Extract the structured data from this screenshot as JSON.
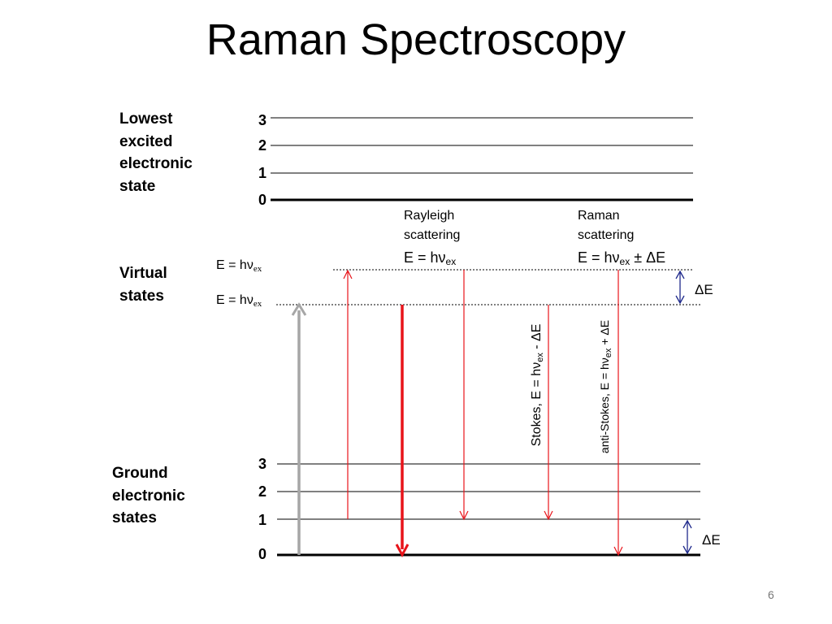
{
  "title": "Raman Spectroscopy",
  "labels": {
    "excited": [
      "Lowest",
      "excited",
      "electronic",
      "state"
    ],
    "virtual": [
      "Virtual",
      "states"
    ],
    "ground": [
      "Ground",
      "electronic",
      "states"
    ]
  },
  "excited_levels": [
    "3",
    "2",
    "1",
    "0"
  ],
  "ground_levels": [
    "3",
    "2",
    "1",
    "0"
  ],
  "virtual_energy": {
    "prefix": "E = h",
    "nu": "ν",
    "sub": "ex"
  },
  "rayleigh": {
    "caption": [
      "Rayleigh",
      "scattering"
    ],
    "eq_prefix": "E = hν",
    "eq_sub": "ex",
    "eq_suffix": ""
  },
  "raman": {
    "caption": [
      "Raman",
      "scattering"
    ],
    "eq_prefix": "E = hν",
    "eq_sub": "ex",
    "eq_suffix": " ± ΔE"
  },
  "stokes": {
    "prefix": "Stokes, E = hν",
    "sub": "ex",
    "suffix": " - ΔE"
  },
  "anti_stokes": {
    "prefix": "anti-Stokes, E = hν",
    "sub": "ex",
    "suffix": " + ΔE"
  },
  "delta_e": "ΔE",
  "page_number": "6",
  "colors": {
    "arrow_red": "#e8141a",
    "excitation_gray": "#a6a6a6",
    "delta_blue": "#1f2a8c",
    "line": "#000000"
  }
}
